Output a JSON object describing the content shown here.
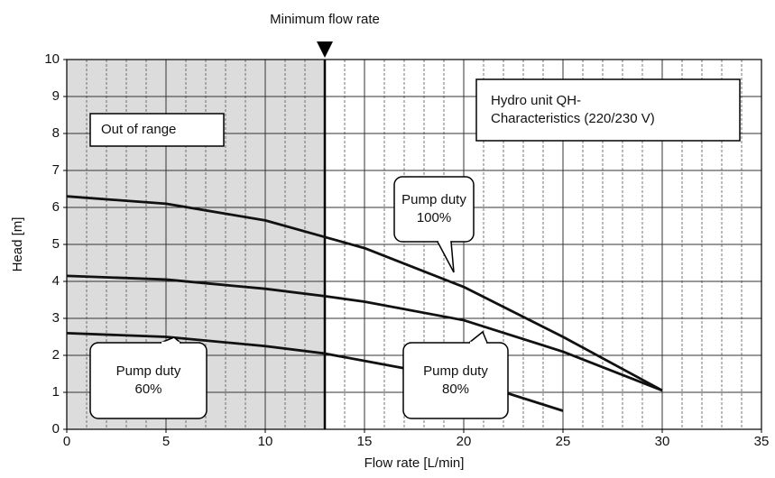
{
  "chart_data": {
    "type": "line",
    "xlabel": "Flow rate [L/min]",
    "ylabel": "Head [m]",
    "x": [
      0,
      5,
      10,
      13,
      15,
      20,
      25,
      30
    ],
    "series": [
      {
        "label_lines": [
          "Pump duty",
          "100%"
        ],
        "color": "#111111",
        "values": [
          6.3,
          6.1,
          5.65,
          5.2,
          4.9,
          3.85,
          2.5,
          1.05
        ]
      },
      {
        "label_lines": [
          "Pump duty",
          "80%"
        ],
        "color": "#111111",
        "values": [
          4.15,
          4.05,
          3.8,
          3.6,
          3.45,
          2.95,
          2.1,
          1.05
        ]
      },
      {
        "label_lines": [
          "Pump duty",
          "60%"
        ],
        "color": "#111111",
        "values": [
          2.6,
          2.5,
          2.25,
          2.05,
          1.85,
          1.35,
          0.5,
          null
        ]
      }
    ],
    "xlim": [
      0,
      35
    ],
    "ylim": [
      0,
      10
    ],
    "xticks": [
      0,
      5,
      10,
      15,
      20,
      25,
      30,
      35
    ],
    "yticks": [
      0,
      1,
      2,
      3,
      4,
      5,
      6,
      7,
      8,
      9,
      10
    ],
    "minor_x_step": 1,
    "grid": true,
    "minimum_flow": {
      "label": "Minimum flow rate",
      "value": 13
    },
    "out_of_range_label": "Out of range",
    "info_box": [
      "Hydro unit  QH-",
      "Characteristics (220/230 V)"
    ]
  }
}
